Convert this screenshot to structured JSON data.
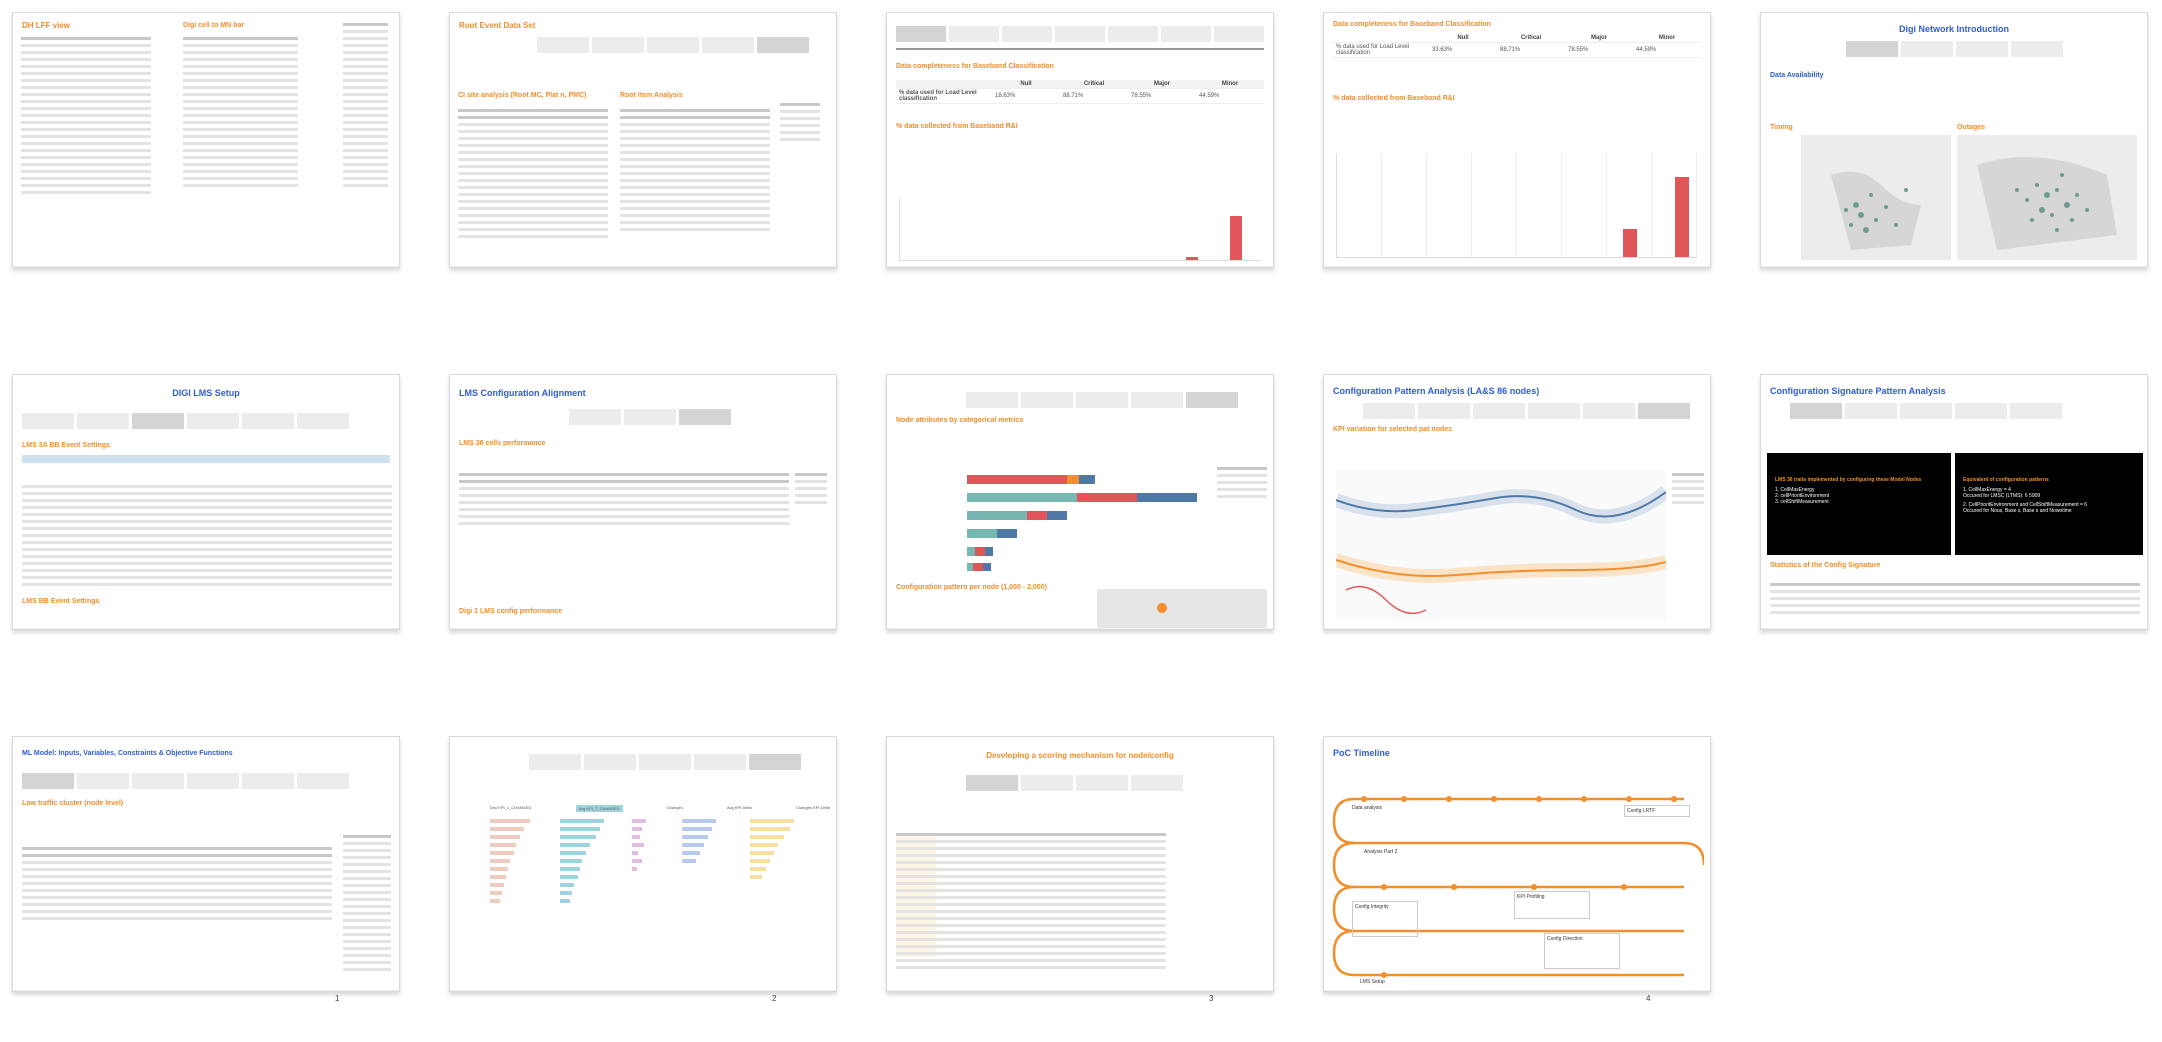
{
  "slides": [
    {
      "title": "DH LFF view",
      "subtitle": "Digi cell to MN bar"
    },
    {
      "title": "Root Event Data Set",
      "subtitle_a": "CI site analysis (Root MC, Plat n, PMC)",
      "subtitle_b": "Root Item Analysis"
    },
    {
      "subtitle_a": "Data completeness for Baseband Classification",
      "subtitle_b": "% data collected from Baseband R&I",
      "table_headers": [
        "Null",
        "Critical",
        "Major",
        "Minor"
      ],
      "row_label": "% data used for Load Level classification",
      "values": [
        "18.63%",
        "88.71%",
        "78.55%",
        "44.59%"
      ]
    },
    {
      "subtitle_a": "Data completeness for Baseband Classification",
      "subtitle_b": "% data collected from Baseband R&I",
      "table_headers": [
        "Null",
        "Critical",
        "Major",
        "Minor"
      ],
      "row_label": "% data used for Load Level classification",
      "values": [
        "33.63%",
        "88.71%",
        "78.55%",
        "44.59%"
      ]
    },
    {
      "title": "Digi Network Introduction",
      "section": "Data Availability",
      "map_a": "Timing",
      "map_b": "Outages"
    },
    {
      "title": "DIGI LMS Setup",
      "subtitle_a": "LMS 3A BB Event Settings",
      "subtitle_b": "LMS BB Event Settings"
    },
    {
      "title": "LMS Configuration Alignment",
      "subtitle_a": "LMS 36 cells performance",
      "subtitle_b": "Digi 1 LMS config performance"
    },
    {
      "subtitle_a": "Node attributes by categorical metrics",
      "subtitle_b": "Configuration pattern per node (1,000 - 2,000)"
    },
    {
      "title": "Configuration Pattern Analysis (LA&S 86 nodes)",
      "subtitle_a": "KPI variation for selected pat nodes"
    },
    {
      "title": "Configuration Signature Pattern Analysis",
      "box_a_title": "LMS 36 traits implemented by configuring these Model Nodes",
      "box_a_items": [
        "1. CellMaxEnergy",
        "2. cellPrioritEnvironment",
        "3. cellShiftMeasurement"
      ],
      "box_b_title": "Equivalent of configuration patterns",
      "box_b_items": [
        "1. CellMaxEnergy = 4",
        "Occured for LMSC (LTMS): 6 5909",
        "2. CellPrioritEnvironment and CellShiftMeasurement = 6",
        "Occured for Nous, Base s, Base s and Nowotime"
      ],
      "subtitle_a": "Statistics of the Config Signature"
    },
    {
      "title": "ML Model: Inputs, Variables, Constraints & Objective Functions",
      "subtitle_a": "Low traffic cluster (node level)"
    },
    {
      "headers": [
        "Dec KPI_1_CHANGED",
        "Avg KPI_7_CHANGED",
        "Changes",
        "Avg KPI Delta",
        "Changes KPI Delta"
      ]
    },
    {
      "title": "Developing a scoring mechanism for node/config"
    },
    {
      "title": "PoC Timeline",
      "events": [
        "Data analysis",
        "Config LRTF",
        "Analysis Part 2",
        "KPI Profiling",
        "Config Integrity",
        "Config Direction",
        "LMS Setup"
      ]
    }
  ],
  "page_numbers": [
    "1",
    "2",
    "3",
    "4"
  ]
}
